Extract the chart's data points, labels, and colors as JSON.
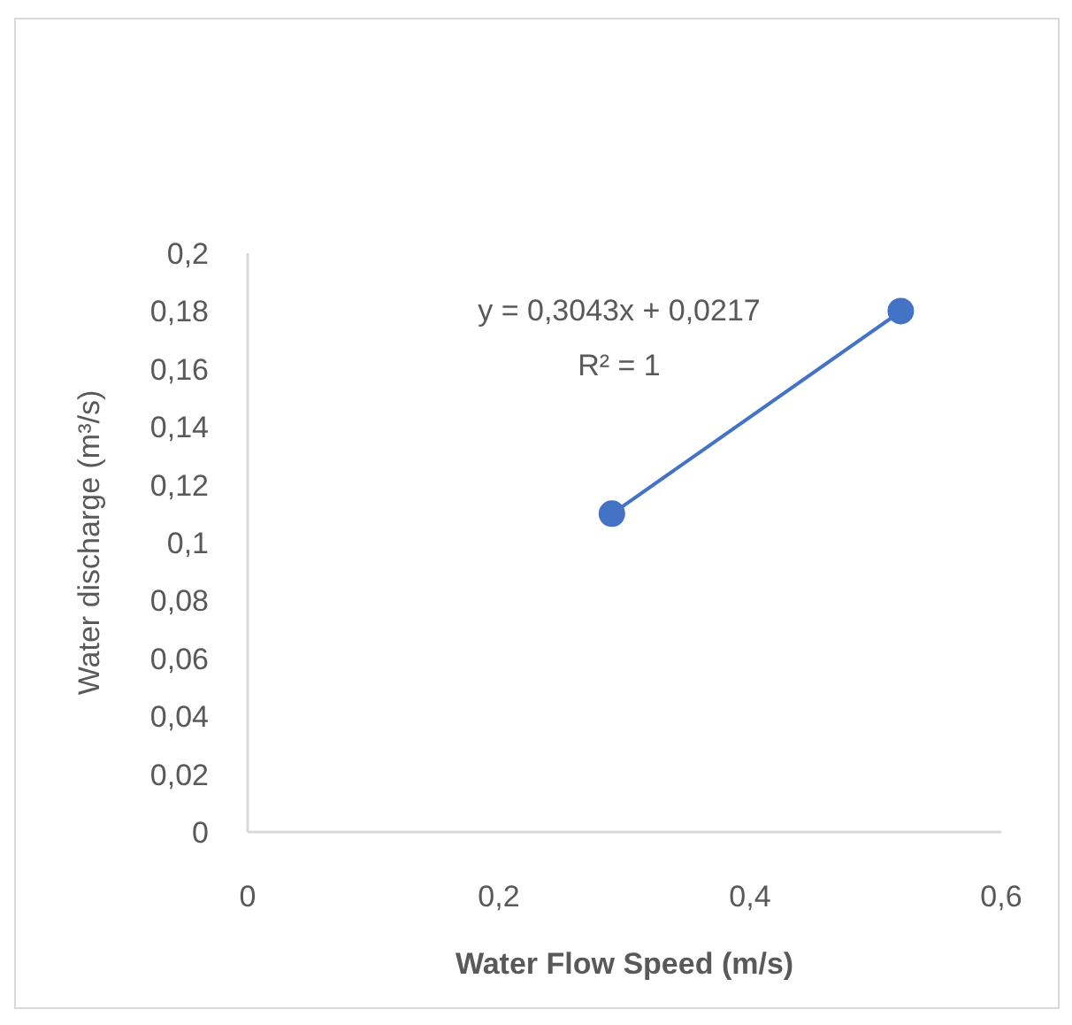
{
  "chart_data": {
    "type": "scatter",
    "xlabel": "Water Flow Speed (m/s)",
    "ylabel": "Water discharge  (m³/s)",
    "xlim": [
      0,
      0.6
    ],
    "xticks": [
      0,
      {
        "value": 0.2,
        "label": "0,2"
      },
      {
        "value": 0.4,
        "label": "0,4"
      },
      {
        "value": 0.6,
        "label": "0,6"
      }
    ],
    "ylim": [
      0,
      0.2
    ],
    "yticks": [
      0,
      {
        "value": 0.02,
        "label": "0,02"
      },
      {
        "value": 0.04,
        "label": "0,04"
      },
      {
        "value": 0.06,
        "label": "0,06"
      },
      {
        "value": 0.08,
        "label": "0,08"
      },
      {
        "value": 0.1,
        "label": "0,1"
      },
      {
        "value": 0.12,
        "label": "0,12"
      },
      {
        "value": 0.14,
        "label": "0,14"
      },
      {
        "value": 0.16,
        "label": "0,16"
      },
      {
        "value": 0.18,
        "label": "0,18"
      },
      {
        "value": 0.2,
        "label": "0,2"
      }
    ],
    "grid": false,
    "x": [
      0.29,
      0.52
    ],
    "series": [
      {
        "type": "scatter",
        "color": "#4472c4",
        "marker": "circle",
        "values": [
          0.11,
          0.18
        ]
      },
      {
        "type": "line",
        "color": "#4472c4",
        "line_style": "solid",
        "marker": "none",
        "values": [
          0.1099,
          0.1799
        ]
      }
    ],
    "annotations": [
      "y = 0,3043x + 0,0217",
      "R² = 1"
    ]
  }
}
